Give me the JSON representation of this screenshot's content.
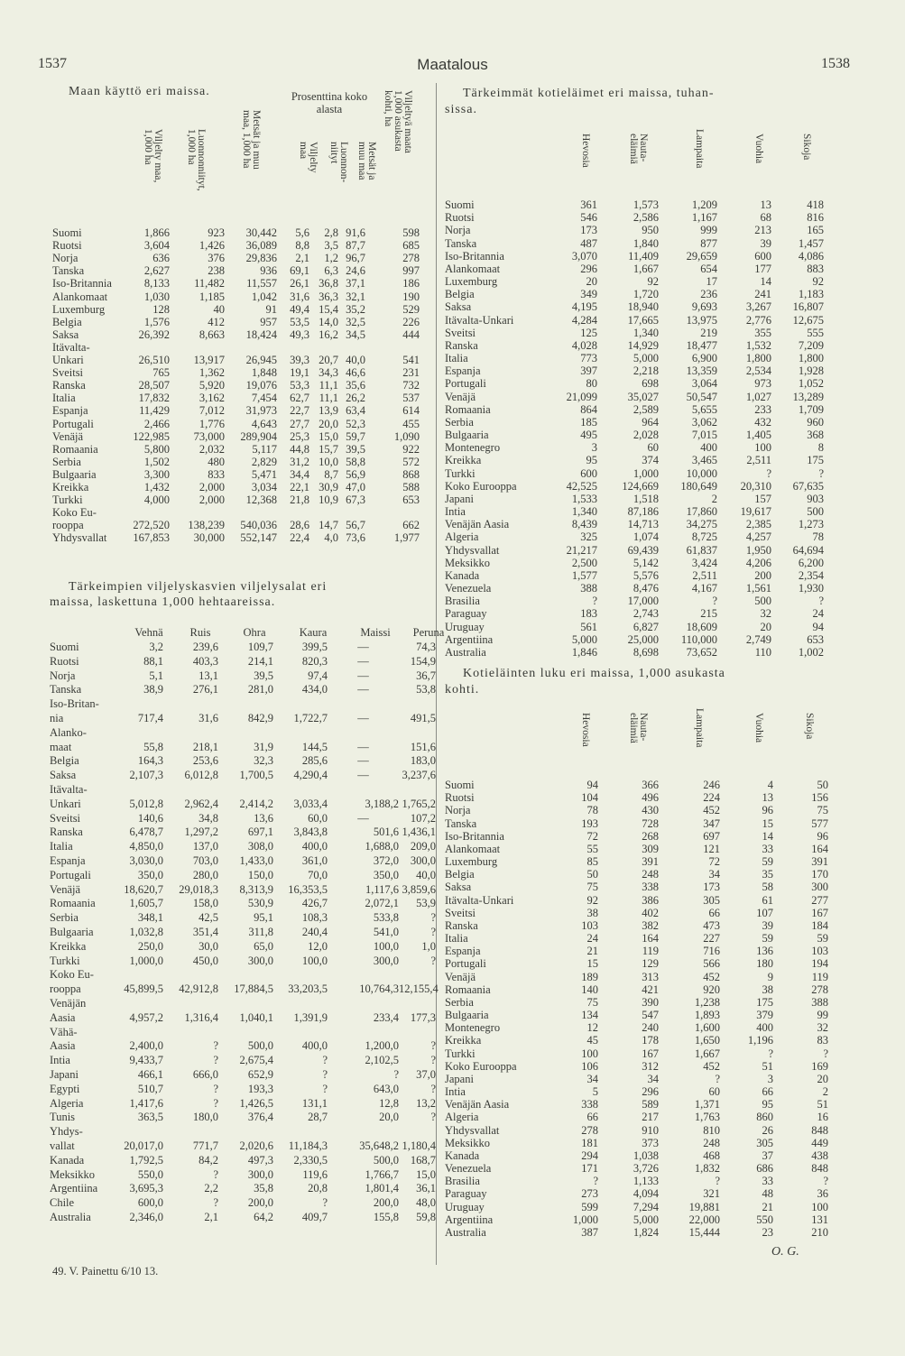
{
  "header": {
    "page_left": "1537",
    "section": "Maatalous",
    "page_right": "1538"
  },
  "land_use": {
    "title": "Maan käyttö eri maissa.",
    "group_header": "Prosenttina koko\nalasta",
    "columns": [
      "Viljelty maa,\n1,000 ha",
      "Luonnonniityt,\n1,000 ha",
      "Metsät ja muu\nmaa, 1,000 ha",
      "Viljelty\nmaa",
      "Luonnon-\nniityt",
      "Metsät ja\nmuu maa",
      "Viljeltyä maata\n1,000 asukasta\nkohti, ha"
    ],
    "rows": [
      [
        "Suomi",
        "1,866",
        "923",
        "30,442",
        "5,6",
        "2,8",
        "91,6",
        "598"
      ],
      [
        "Ruotsi",
        "3,604",
        "1,426",
        "36,089",
        "8,8",
        "3,5",
        "87,7",
        "685"
      ],
      [
        "Norja",
        "636",
        "376",
        "29,836",
        "2,1",
        "1,2",
        "96,7",
        "278"
      ],
      [
        "Tanska",
        "2,627",
        "238",
        "936",
        "69,1",
        "6,3",
        "24,6",
        "997"
      ],
      [
        "Iso-Britannia",
        "8,133",
        "11,482",
        "11,557",
        "26,1",
        "36,8",
        "37,1",
        "186"
      ],
      [
        "Alankomaat",
        "1,030",
        "1,185",
        "1,042",
        "31,6",
        "36,3",
        "32,1",
        "190"
      ],
      [
        "Luxemburg",
        "128",
        "40",
        "91",
        "49,4",
        "15,4",
        "35,2",
        "529"
      ],
      [
        "Belgia",
        "1,576",
        "412",
        "957",
        "53,5",
        "14,0",
        "32,5",
        "226"
      ],
      [
        "Saksa",
        "26,392",
        "8,663",
        "18,424",
        "49,3",
        "16,2",
        "34,5",
        "444"
      ],
      [
        "Itävalta-\nUnkari",
        "26,510",
        "13,917",
        "26,945",
        "39,3",
        "20,7",
        "40,0",
        "541"
      ],
      [
        "Sveitsi",
        "765",
        "1,362",
        "1,848",
        "19,1",
        "34,3",
        "46,6",
        "231"
      ],
      [
        "Ranska",
        "28,507",
        "5,920",
        "19,076",
        "53,3",
        "11,1",
        "35,6",
        "732"
      ],
      [
        "Italia",
        "17,832",
        "3,162",
        "7,454",
        "62,7",
        "11,1",
        "26,2",
        "537"
      ],
      [
        "Espanja",
        "11,429",
        "7,012",
        "31,973",
        "22,7",
        "13,9",
        "63,4",
        "614"
      ],
      [
        "Portugali",
        "2,466",
        "1,776",
        "4,643",
        "27,7",
        "20,0",
        "52,3",
        "455"
      ],
      [
        "Venäjä",
        "122,985",
        "73,000",
        "289,904",
        "25,3",
        "15,0",
        "59,7",
        "1,090"
      ],
      [
        "Romaania",
        "5,800",
        "2,032",
        "5,117",
        "44,8",
        "15,7",
        "39,5",
        "922"
      ],
      [
        "Serbia",
        "1,502",
        "480",
        "2,829",
        "31,2",
        "10,0",
        "58,8",
        "572"
      ],
      [
        "Bulgaaria",
        "3,300",
        "833",
        "5,471",
        "34,4",
        "8,7",
        "56,9",
        "868"
      ],
      [
        "Kreikka",
        "1,432",
        "2,000",
        "3,034",
        "22,1",
        "30,9",
        "47,0",
        "588"
      ],
      [
        "Turkki",
        "4,000",
        "2,000",
        "12,368",
        "21,8",
        "10,9",
        "67,3",
        "653"
      ],
      [
        "Koko Eu-\nrooppa",
        "272,520",
        "138,239",
        "540,036",
        "28,6",
        "14,7",
        "56,7",
        "662"
      ],
      [
        "Yhdysvallat",
        "167,853",
        "30,000",
        "552,147",
        "22,4",
        "4,0",
        "73,6",
        "1,977"
      ]
    ]
  },
  "crops": {
    "title_line1": "Tärkeimpien viljelyskasvien viljelysalat eri",
    "title_line2": "maissa, laskettuna 1,000 hehtaareissa.",
    "columns": [
      "Vehnä",
      "Ruis",
      "Ohra",
      "Kaura",
      "Maissi",
      "Peruna"
    ],
    "rows": [
      [
        "Suomi",
        "3,2",
        "239,6",
        "109,7",
        "399,5",
        "—",
        "74,3"
      ],
      [
        "Ruotsi",
        "88,1",
        "403,3",
        "214,1",
        "820,3",
        "—",
        "154,9"
      ],
      [
        "Norja",
        "5,1",
        "13,1",
        "39,5",
        "97,4",
        "—",
        "36,7"
      ],
      [
        "Tanska",
        "38,9",
        "276,1",
        "281,0",
        "434,0",
        "—",
        "53,8"
      ],
      [
        "Iso-Britan-\nnia",
        "717,4",
        "31,6",
        "842,9",
        "1,722,7",
        "—",
        "491,5"
      ],
      [
        "Alanko-\nmaat",
        "55,8",
        "218,1",
        "31,9",
        "144,5",
        "—",
        "151,6"
      ],
      [
        "Belgia",
        "164,3",
        "253,6",
        "32,3",
        "285,6",
        "—",
        "183,0"
      ],
      [
        "Saksa",
        "2,107,3",
        "6,012,8",
        "1,700,5",
        "4,290,4",
        "—",
        "3,237,6"
      ],
      [
        "Itävalta-\nUnkari",
        "5,012,8",
        "2,962,4",
        "2,414,2",
        "3,033,4",
        "3,188,2",
        "1,765,2"
      ],
      [
        "Sveitsi",
        "140,6",
        "34,8",
        "13,6",
        "60,0",
        "—",
        "107,2"
      ],
      [
        "Ranska",
        "6,478,7",
        "1,297,2",
        "697,1",
        "3,843,8",
        "501,6",
        "1,436,1"
      ],
      [
        "Italia",
        "4,850,0",
        "137,0",
        "308,0",
        "400,0",
        "1,688,0",
        "209,0"
      ],
      [
        "Espanja",
        "3,030,0",
        "703,0",
        "1,433,0",
        "361,0",
        "372,0",
        "300,0"
      ],
      [
        "Portugali",
        "350,0",
        "280,0",
        "150,0",
        "70,0",
        "350,0",
        "40,0"
      ],
      [
        "Venäjä",
        "18,620,7",
        "29,018,3",
        "8,313,9",
        "16,353,5",
        "1,117,6",
        "3,859,6"
      ],
      [
        "Romaania",
        "1,605,7",
        "158,0",
        "530,9",
        "426,7",
        "2,072,1",
        "53,9"
      ],
      [
        "Serbia",
        "348,1",
        "42,5",
        "95,1",
        "108,3",
        "533,8",
        "?"
      ],
      [
        "Bulgaaria",
        "1,032,8",
        "351,4",
        "311,8",
        "240,4",
        "541,0",
        "?"
      ],
      [
        "Kreikka",
        "250,0",
        "30,0",
        "65,0",
        "12,0",
        "100,0",
        "1,0"
      ],
      [
        "Turkki",
        "1,000,0",
        "450,0",
        "300,0",
        "100,0",
        "300,0",
        "?"
      ],
      [
        "Koko Eu-\nrooppa",
        "45,899,5",
        "42,912,8",
        "17,884,5",
        "33,203,5",
        "10,764,3",
        "12,155,4"
      ],
      [
        "Venäjän\nAasia",
        "4,957,2",
        "1,316,4",
        "1,040,1",
        "1,391,9",
        "233,4",
        "177,3"
      ],
      [
        "Vähä-\nAasia",
        "2,400,0",
        "?",
        "500,0",
        "400,0",
        "1,200,0",
        "?"
      ],
      [
        "Intia",
        "9,433,7",
        "?",
        "2,675,4",
        "?",
        "2,102,5",
        "?"
      ],
      [
        "Japani",
        "466,1",
        "666,0",
        "652,9",
        "?",
        "?",
        "37,0"
      ],
      [
        "Egypti",
        "510,7",
        "?",
        "193,3",
        "?",
        "643,0",
        "?"
      ],
      [
        "Algeria",
        "1,417,6",
        "?",
        "1,426,5",
        "131,1",
        "12,8",
        "13,2"
      ],
      [
        "Tunis",
        "363,5",
        "180,0",
        "376,4",
        "28,7",
        "20,0",
        "?"
      ],
      [
        "Yhdys-\nvallat",
        "20,017,0",
        "771,7",
        "2,020,6",
        "11,184,3",
        "35,648,2",
        "1,180,4"
      ],
      [
        "Kanada",
        "1,792,5",
        "84,2",
        "497,3",
        "2,330,5",
        "500,0",
        "168,7"
      ],
      [
        "Meksikko",
        "550,0",
        "?",
        "300,0",
        "119,6",
        "1,766,7",
        "15,0"
      ],
      [
        "Argentiina",
        "3,695,3",
        "2,2",
        "35,8",
        "20,8",
        "1,801,4",
        "36,1"
      ],
      [
        "Chile",
        "600,0",
        "?",
        "200,0",
        "?",
        "200,0",
        "48,0"
      ],
      [
        "Australia",
        "2,346,0",
        "2,1",
        "64,2",
        "409,7",
        "155,8",
        "59,8"
      ]
    ]
  },
  "livestock": {
    "title_line1": "Tärkeimmät kotieläimet eri maissa, tuhan-",
    "title_line2": "sissa.",
    "columns": [
      "Hevosia",
      "Nauta-\neläimiä",
      "Lampaita",
      "Vuohia",
      "Sikoja"
    ],
    "rows": [
      [
        "Suomi",
        "361",
        "1,573",
        "1,209",
        "13",
        "418"
      ],
      [
        "Ruotsi",
        "546",
        "2,586",
        "1,167",
        "68",
        "816"
      ],
      [
        "Norja",
        "173",
        "950",
        "999",
        "213",
        "165"
      ],
      [
        "Tanska",
        "487",
        "1,840",
        "877",
        "39",
        "1,457"
      ],
      [
        "Iso-Britannia",
        "3,070",
        "11,409",
        "29,659",
        "600",
        "4,086"
      ],
      [
        "Alankomaat",
        "296",
        "1,667",
        "654",
        "177",
        "883"
      ],
      [
        "Luxemburg",
        "20",
        "92",
        "17",
        "14",
        "92"
      ],
      [
        "Belgia",
        "349",
        "1,720",
        "236",
        "241",
        "1,183"
      ],
      [
        "Saksa",
        "4,195",
        "18,940",
        "9,693",
        "3,267",
        "16,807"
      ],
      [
        "Itävalta-Unkari",
        "4,284",
        "17,665",
        "13,975",
        "2,776",
        "12,675"
      ],
      [
        "Sveitsi",
        "125",
        "1,340",
        "219",
        "355",
        "555"
      ],
      [
        "Ranska",
        "4,028",
        "14,929",
        "18,477",
        "1,532",
        "7,209"
      ],
      [
        "Italia",
        "773",
        "5,000",
        "6,900",
        "1,800",
        "1,800"
      ],
      [
        "Espanja",
        "397",
        "2,218",
        "13,359",
        "2,534",
        "1,928"
      ],
      [
        "Portugali",
        "80",
        "698",
        "3,064",
        "973",
        "1,052"
      ],
      [
        "Venäjä",
        "21,099",
        "35,027",
        "50,547",
        "1,027",
        "13,289"
      ],
      [
        "Romaania",
        "864",
        "2,589",
        "5,655",
        "233",
        "1,709"
      ],
      [
        "Serbia",
        "185",
        "964",
        "3,062",
        "432",
        "960"
      ],
      [
        "Bulgaaria",
        "495",
        "2,028",
        "7,015",
        "1,405",
        "368"
      ],
      [
        "Montenegro",
        "3",
        "60",
        "400",
        "100",
        "8"
      ],
      [
        "Kreikka",
        "95",
        "374",
        "3,465",
        "2,511",
        "175"
      ],
      [
        "Turkki",
        "600",
        "1,000",
        "10,000",
        "?",
        "?"
      ],
      [
        "Koko Eurooppa",
        "42,525",
        "124,669",
        "180,649",
        "20,310",
        "67,635"
      ],
      [
        "Japani",
        "1,533",
        "1,518",
        "2",
        "157",
        "903"
      ],
      [
        "Intia",
        "1,340",
        "87,186",
        "17,860",
        "19,617",
        "500"
      ],
      [
        "Venäjän Aasia",
        "8,439",
        "14,713",
        "34,275",
        "2,385",
        "1,273"
      ],
      [
        "Algeria",
        "325",
        "1,074",
        "8,725",
        "4,257",
        "78"
      ],
      [
        "Yhdysvallat",
        "21,217",
        "69,439",
        "61,837",
        "1,950",
        "64,694"
      ],
      [
        "Meksikko",
        "2,500",
        "5,142",
        "3,424",
        "4,206",
        "6,200"
      ],
      [
        "Kanada",
        "1,577",
        "5,576",
        "2,511",
        "200",
        "2,354"
      ],
      [
        "Venezuela",
        "388",
        "8,476",
        "4,167",
        "1,561",
        "1,930"
      ],
      [
        "Brasilia",
        "?",
        "17,000",
        "?",
        "500",
        "?"
      ],
      [
        "Paraguay",
        "183",
        "2,743",
        "215",
        "32",
        "24"
      ],
      [
        "Uruguay",
        "561",
        "6,827",
        "18,609",
        "20",
        "94"
      ],
      [
        "Argentiina",
        "5,000",
        "25,000",
        "110,000",
        "2,749",
        "653"
      ],
      [
        "Australia",
        "1,846",
        "8,698",
        "73,652",
        "110",
        "1,002"
      ]
    ]
  },
  "livestock_per_capita": {
    "title_line1": "Kotieläinten luku eri maissa, 1,000 asukasta",
    "title_line2": "kohti.",
    "columns": [
      "Hevosia",
      "Nauta-\neläimiä",
      "Lampaita",
      "Vuohia",
      "Sikoja"
    ],
    "rows": [
      [
        "Suomi",
        "94",
        "366",
        "246",
        "4",
        "50"
      ],
      [
        "Ruotsi",
        "104",
        "496",
        "224",
        "13",
        "156"
      ],
      [
        "Norja",
        "78",
        "430",
        "452",
        "96",
        "75"
      ],
      [
        "Tanska",
        "193",
        "728",
        "347",
        "15",
        "577"
      ],
      [
        "Iso-Britannia",
        "72",
        "268",
        "697",
        "14",
        "96"
      ],
      [
        "Alankomaat",
        "55",
        "309",
        "121",
        "33",
        "164"
      ],
      [
        "Luxemburg",
        "85",
        "391",
        "72",
        "59",
        "391"
      ],
      [
        "Belgia",
        "50",
        "248",
        "34",
        "35",
        "170"
      ],
      [
        "Saksa",
        "75",
        "338",
        "173",
        "58",
        "300"
      ],
      [
        "Itävalta-Unkari",
        "92",
        "386",
        "305",
        "61",
        "277"
      ],
      [
        "Sveitsi",
        "38",
        "402",
        "66",
        "107",
        "167"
      ],
      [
        "Ranska",
        "103",
        "382",
        "473",
        "39",
        "184"
      ],
      [
        "Italia",
        "24",
        "164",
        "227",
        "59",
        "59"
      ],
      [
        "Espanja",
        "21",
        "119",
        "716",
        "136",
        "103"
      ],
      [
        "Portugali",
        "15",
        "129",
        "566",
        "180",
        "194"
      ],
      [
        "Venäjä",
        "189",
        "313",
        "452",
        "9",
        "119"
      ],
      [
        "Romaania",
        "140",
        "421",
        "920",
        "38",
        "278"
      ],
      [
        "Serbia",
        "75",
        "390",
        "1,238",
        "175",
        "388"
      ],
      [
        "Bulgaaria",
        "134",
        "547",
        "1,893",
        "379",
        "99"
      ],
      [
        "Montenegro",
        "12",
        "240",
        "1,600",
        "400",
        "32"
      ],
      [
        "Kreikka",
        "45",
        "178",
        "1,650",
        "1,196",
        "83"
      ],
      [
        "Turkki",
        "100",
        "167",
        "1,667",
        "?",
        "?"
      ],
      [
        "Koko Eurooppa",
        "106",
        "312",
        "452",
        "51",
        "169"
      ],
      [
        "Japani",
        "34",
        "34",
        "?",
        "3",
        "20"
      ],
      [
        "Intia",
        "5",
        "296",
        "60",
        "66",
        "2"
      ],
      [
        "Venäjän Aasia",
        "338",
        "589",
        "1,371",
        "95",
        "51"
      ],
      [
        "Algeria",
        "66",
        "217",
        "1,763",
        "860",
        "16"
      ],
      [
        "Yhdysvallat",
        "278",
        "910",
        "810",
        "26",
        "848"
      ],
      [
        "Meksikko",
        "181",
        "373",
        "248",
        "305",
        "449"
      ],
      [
        "Kanada",
        "294",
        "1,038",
        "468",
        "37",
        "438"
      ],
      [
        "Venezuela",
        "171",
        "3,726",
        "1,832",
        "686",
        "848"
      ],
      [
        "Brasilia",
        "?",
        "1,133",
        "?",
        "33",
        "?"
      ],
      [
        "Paraguay",
        "273",
        "4,094",
        "321",
        "48",
        "36"
      ],
      [
        "Uruguay",
        "599",
        "7,294",
        "19,881",
        "21",
        "100"
      ],
      [
        "Argentiina",
        "1,000",
        "5,000",
        "22,000",
        "550",
        "131"
      ],
      [
        "Australia",
        "387",
        "1,824",
        "15,444",
        "23",
        "210"
      ]
    ],
    "signature": "O. G."
  },
  "footer": {
    "print_note": "49. V. Painettu 6/10 13."
  }
}
